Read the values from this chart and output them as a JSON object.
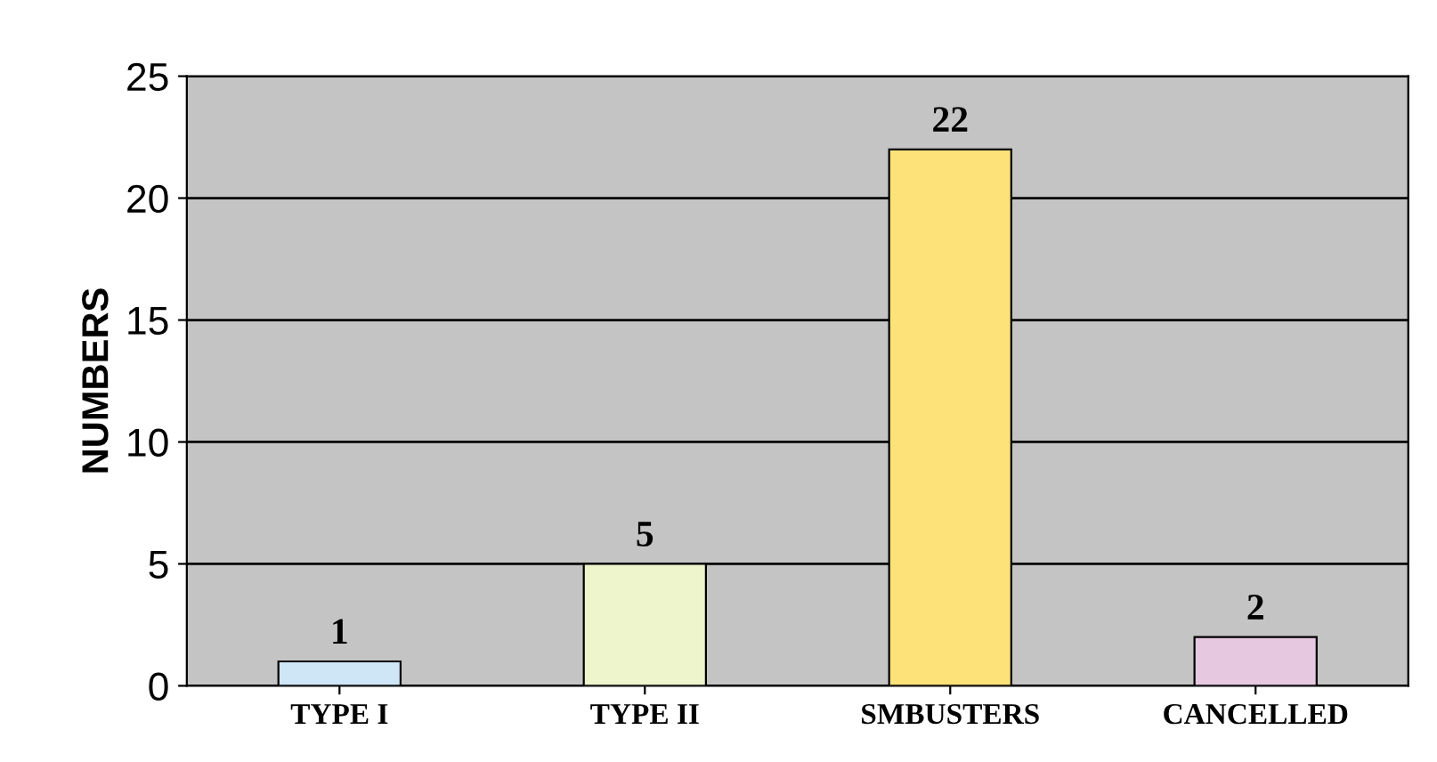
{
  "chart_data": {
    "type": "bar",
    "ylabel": "NUMBERS",
    "categories": [
      "TYPE I",
      "TYPE II",
      "SMBUSTERS",
      "CANCELLED"
    ],
    "values": [
      1,
      5,
      22,
      2
    ],
    "colors": [
      "#cfe6f7",
      "#eef5cc",
      "#fde27a",
      "#e6c9e0"
    ],
    "ylim": [
      0,
      25
    ],
    "yticks": [
      0,
      5,
      10,
      15,
      20,
      25
    ],
    "grid": "y",
    "data_labels": true
  }
}
